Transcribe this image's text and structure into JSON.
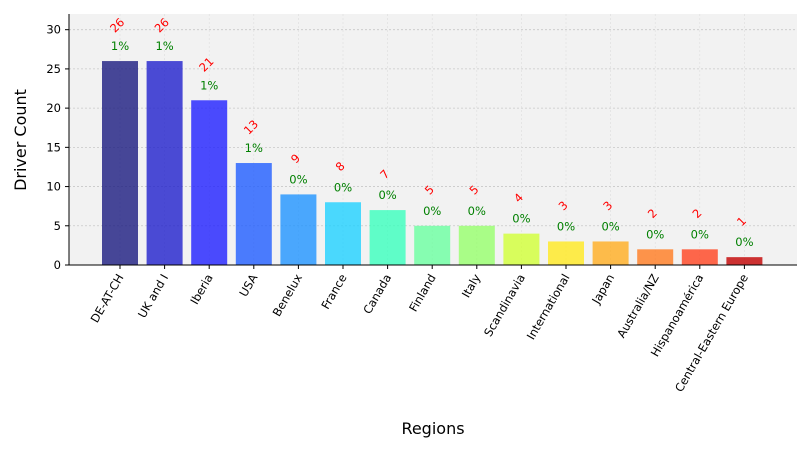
{
  "chart_data": {
    "type": "bar",
    "xlabel": "Regions",
    "ylabel": "Driver Count",
    "ylim": [
      0,
      32
    ],
    "yticks": [
      0,
      5,
      10,
      15,
      20,
      25,
      30
    ],
    "grid": true,
    "categories": [
      "DE-AT-CH",
      "UK and I",
      "Iberia",
      "USA",
      "Benelux",
      "France",
      "Canada",
      "Finland",
      "Italy",
      "Scandinavia",
      "International",
      "Japan",
      "Australia/NZ",
      "Hispanoamérica",
      "Central-Eastern Europe"
    ],
    "values": [
      26,
      26,
      21,
      13,
      9,
      8,
      7,
      5,
      5,
      4,
      3,
      3,
      2,
      2,
      1
    ],
    "count_labels": [
      "26",
      "26",
      "21",
      "13",
      "9",
      "8",
      "7",
      "5",
      "5",
      "4",
      "3",
      "3",
      "2",
      "2",
      "1"
    ],
    "percent_labels": [
      "1%",
      "1%",
      "1%",
      "1%",
      "0%",
      "0%",
      "0%",
      "0%",
      "0%",
      "0%",
      "0%",
      "0%",
      "0%",
      "0%",
      "0%"
    ],
    "colors": [
      "#1a1a80",
      "#1f1fcc",
      "#1f1fff",
      "#1f5cff",
      "#1f94ff",
      "#1fd1ff",
      "#39ffbd",
      "#6affa0",
      "#96ff6b",
      "#d1ff36",
      "#ffe81f",
      "#ffad1f",
      "#ff7a1f",
      "#ff421f",
      "#c20000"
    ],
    "background": "#f2f2f2"
  }
}
